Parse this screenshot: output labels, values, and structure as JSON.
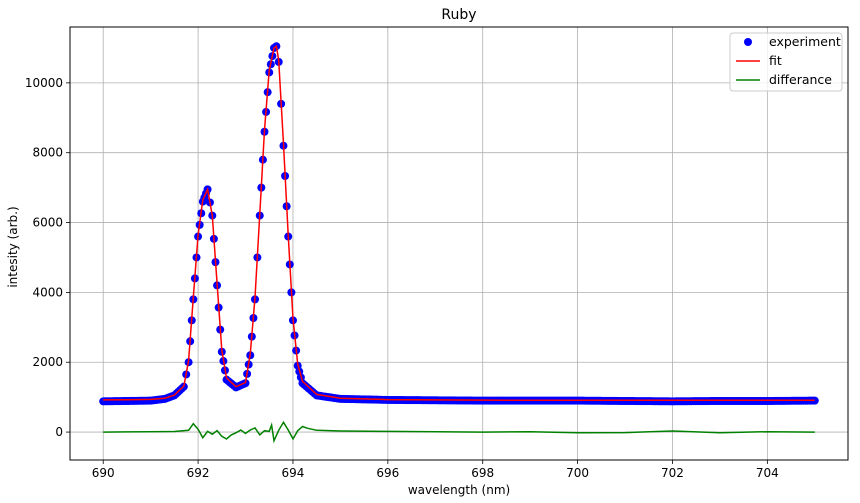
{
  "chart_data": {
    "type": "scatter",
    "title": "Ruby",
    "xlabel": "wavelength (nm)",
    "ylabel": "intesity (arb.)",
    "xlim": [
      689.3,
      705.7
    ],
    "ylim": [
      -800,
      11600
    ],
    "xticks": [
      690,
      692,
      694,
      696,
      698,
      700,
      702,
      704
    ],
    "yticks": [
      0,
      2000,
      4000,
      6000,
      8000,
      10000
    ],
    "grid": true,
    "legend": "top-right",
    "series": [
      {
        "name": "experiment",
        "kind": "points",
        "color": "#0000ff",
        "x": [
          690.0,
          690.5,
          691.0,
          691.3,
          691.5,
          691.7,
          691.8,
          691.9,
          692.0,
          692.1,
          692.2,
          692.3,
          692.4,
          692.5,
          692.6,
          692.8,
          693.0,
          693.1,
          693.2,
          693.3,
          693.4,
          693.5,
          693.6,
          693.65,
          693.7,
          693.8,
          693.9,
          694.0,
          694.1,
          694.2,
          694.5,
          695.0,
          696.0,
          697.0,
          698.0,
          699.0,
          700.0,
          701.0,
          702.0,
          703.0,
          704.0,
          705.0
        ],
        "y": [
          880,
          890,
          900,
          950,
          1050,
          1300,
          2000,
          3800,
          5600,
          6600,
          6950,
          6200,
          4200,
          2300,
          1500,
          1280,
          1400,
          2200,
          3800,
          6200,
          8600,
          10300,
          11000,
          11050,
          10600,
          8200,
          5600,
          3200,
          1900,
          1400,
          1050,
          950,
          920,
          910,
          900,
          900,
          900,
          890,
          880,
          890,
          890,
          900
        ]
      },
      {
        "name": "fit",
        "kind": "line",
        "color": "#ff0000",
        "x": [
          690.0,
          690.5,
          691.0,
          691.3,
          691.5,
          691.7,
          691.8,
          691.9,
          692.0,
          692.1,
          692.2,
          692.3,
          692.4,
          692.5,
          692.6,
          692.8,
          693.0,
          693.1,
          693.2,
          693.3,
          693.4,
          693.5,
          693.6,
          693.65,
          693.7,
          693.8,
          693.9,
          694.0,
          694.1,
          694.2,
          694.5,
          695.0,
          696.0,
          697.0,
          698.0,
          699.0,
          700.0,
          701.0,
          702.0,
          703.0,
          704.0,
          705.0
        ],
        "y": [
          920,
          925,
          935,
          970,
          1060,
          1320,
          2050,
          3850,
          5650,
          6650,
          6950,
          6200,
          4250,
          2350,
          1550,
          1300,
          1420,
          2250,
          3850,
          6250,
          8650,
          10350,
          11000,
          11050,
          10650,
          8250,
          5650,
          3250,
          1950,
          1450,
          1080,
          970,
          930,
          920,
          915,
          910,
          910,
          910,
          910,
          910,
          910,
          910
        ]
      },
      {
        "name": "differance",
        "kind": "line",
        "color": "#008000",
        "x": [
          690.0,
          690.5,
          691.0,
          691.5,
          691.8,
          691.9,
          692.0,
          692.1,
          692.2,
          692.3,
          692.4,
          692.5,
          692.6,
          692.7,
          692.8,
          692.9,
          693.0,
          693.1,
          693.2,
          693.3,
          693.4,
          693.5,
          693.55,
          693.6,
          693.7,
          693.8,
          693.9,
          694.0,
          694.1,
          694.2,
          694.3,
          694.5,
          695.0,
          696.0,
          697.0,
          698.0,
          699.0,
          700.0,
          701.0,
          702.0,
          703.0,
          704.0,
          705.0
        ],
        "y": [
          0,
          5,
          10,
          15,
          50,
          240,
          80,
          -160,
          20,
          -60,
          40,
          -120,
          -200,
          -80,
          -20,
          60,
          -40,
          60,
          120,
          -80,
          40,
          20,
          200,
          -250,
          50,
          280,
          60,
          -200,
          40,
          160,
          110,
          50,
          30,
          20,
          10,
          0,
          10,
          -20,
          -15,
          30,
          -20,
          10,
          0
        ]
      }
    ]
  }
}
